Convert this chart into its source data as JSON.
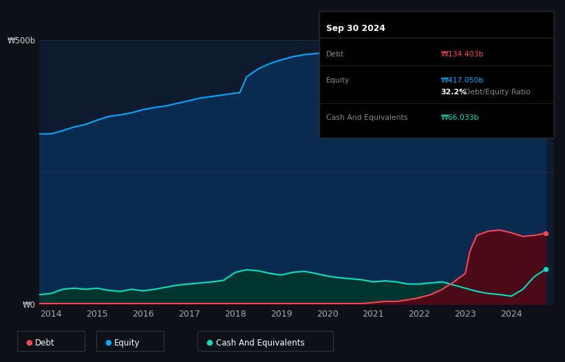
{
  "bg_color": "#0d1117",
  "plot_bg_color": "#0e1a2d",
  "equity_color": "#00aaff",
  "debt_color": "#ff4455",
  "cash_color": "#00e5c0",
  "equity_fill": "#0a2a50",
  "debt_fill": "#4a0a18",
  "cash_fill": "#003530",
  "grid_color": "#1e3050",
  "legend_items": [
    "Debt",
    "Equity",
    "Cash And Equivalents"
  ],
  "tooltip": {
    "date": "Sep 30 2024",
    "debt_label": "Debt",
    "debt_value": "₩134.403b",
    "equity_label": "Equity",
    "equity_value": "₩417.050b",
    "ratio_pct": "32.2%",
    "ratio_label": "Debt/Equity Ratio",
    "cash_label": "Cash And Equivalents",
    "cash_value": "₩66.033b"
  },
  "equity_years": [
    2013.75,
    2014.0,
    2014.25,
    2014.5,
    2014.75,
    2015.0,
    2015.25,
    2015.5,
    2015.75,
    2016.0,
    2016.25,
    2016.5,
    2016.75,
    2017.0,
    2017.25,
    2017.5,
    2017.75,
    2018.0,
    2018.1,
    2018.25,
    2018.5,
    2018.75,
    2019.0,
    2019.25,
    2019.5,
    2019.75,
    2020.0,
    2020.25,
    2020.5,
    2020.75,
    2021.0,
    2021.25,
    2021.5,
    2021.75,
    2022.0,
    2022.25,
    2022.5,
    2022.75,
    2023.0,
    2023.25,
    2023.5,
    2023.75,
    2024.0,
    2024.25,
    2024.5,
    2024.75
  ],
  "equity_vals": [
    322,
    322,
    328,
    335,
    340,
    348,
    355,
    358,
    362,
    368,
    372,
    375,
    380,
    385,
    390,
    393,
    396,
    399,
    400,
    430,
    445,
    455,
    462,
    468,
    472,
    474,
    476,
    478,
    479,
    480,
    480,
    477,
    472,
    468,
    465,
    463,
    462,
    460,
    458,
    450,
    435,
    415,
    395,
    405,
    412,
    417
  ],
  "debt_years": [
    2013.75,
    2014.0,
    2014.25,
    2014.5,
    2014.75,
    2015.0,
    2015.25,
    2015.5,
    2015.75,
    2016.0,
    2016.25,
    2016.5,
    2016.75,
    2017.0,
    2017.25,
    2017.5,
    2017.75,
    2018.0,
    2018.25,
    2018.5,
    2018.75,
    2019.0,
    2019.25,
    2019.5,
    2019.75,
    2020.0,
    2020.25,
    2020.5,
    2020.75,
    2021.0,
    2021.25,
    2021.5,
    2021.75,
    2022.0,
    2022.25,
    2022.5,
    2022.75,
    2023.0,
    2023.1,
    2023.25,
    2023.5,
    2023.75,
    2024.0,
    2024.25,
    2024.5,
    2024.75
  ],
  "debt_vals": [
    1,
    1,
    1,
    1,
    1,
    1,
    1,
    1,
    1,
    1,
    1,
    1,
    1,
    1,
    1,
    1,
    1,
    1,
    1,
    1,
    1,
    1,
    1,
    1,
    1,
    1,
    1,
    1,
    1,
    3,
    5,
    5,
    8,
    12,
    18,
    28,
    42,
    58,
    100,
    130,
    138,
    140,
    135,
    128,
    130,
    134
  ],
  "cash_years": [
    2013.75,
    2014.0,
    2014.25,
    2014.5,
    2014.75,
    2015.0,
    2015.25,
    2015.5,
    2015.75,
    2016.0,
    2016.25,
    2016.5,
    2016.75,
    2017.0,
    2017.25,
    2017.5,
    2017.75,
    2018.0,
    2018.25,
    2018.5,
    2018.75,
    2019.0,
    2019.25,
    2019.5,
    2019.75,
    2020.0,
    2020.25,
    2020.5,
    2020.75,
    2021.0,
    2021.25,
    2021.5,
    2021.75,
    2022.0,
    2022.25,
    2022.5,
    2022.75,
    2023.0,
    2023.25,
    2023.5,
    2023.75,
    2024.0,
    2024.25,
    2024.5,
    2024.75
  ],
  "cash_vals": [
    18,
    20,
    28,
    30,
    28,
    30,
    26,
    24,
    28,
    25,
    28,
    32,
    36,
    38,
    40,
    42,
    45,
    60,
    65,
    63,
    58,
    55,
    60,
    62,
    58,
    53,
    50,
    48,
    46,
    42,
    44,
    42,
    38,
    38,
    40,
    42,
    36,
    30,
    24,
    20,
    18,
    15,
    28,
    52,
    66
  ],
  "ylim": [
    0,
    500
  ],
  "xlim": [
    2013.75,
    2024.92
  ]
}
